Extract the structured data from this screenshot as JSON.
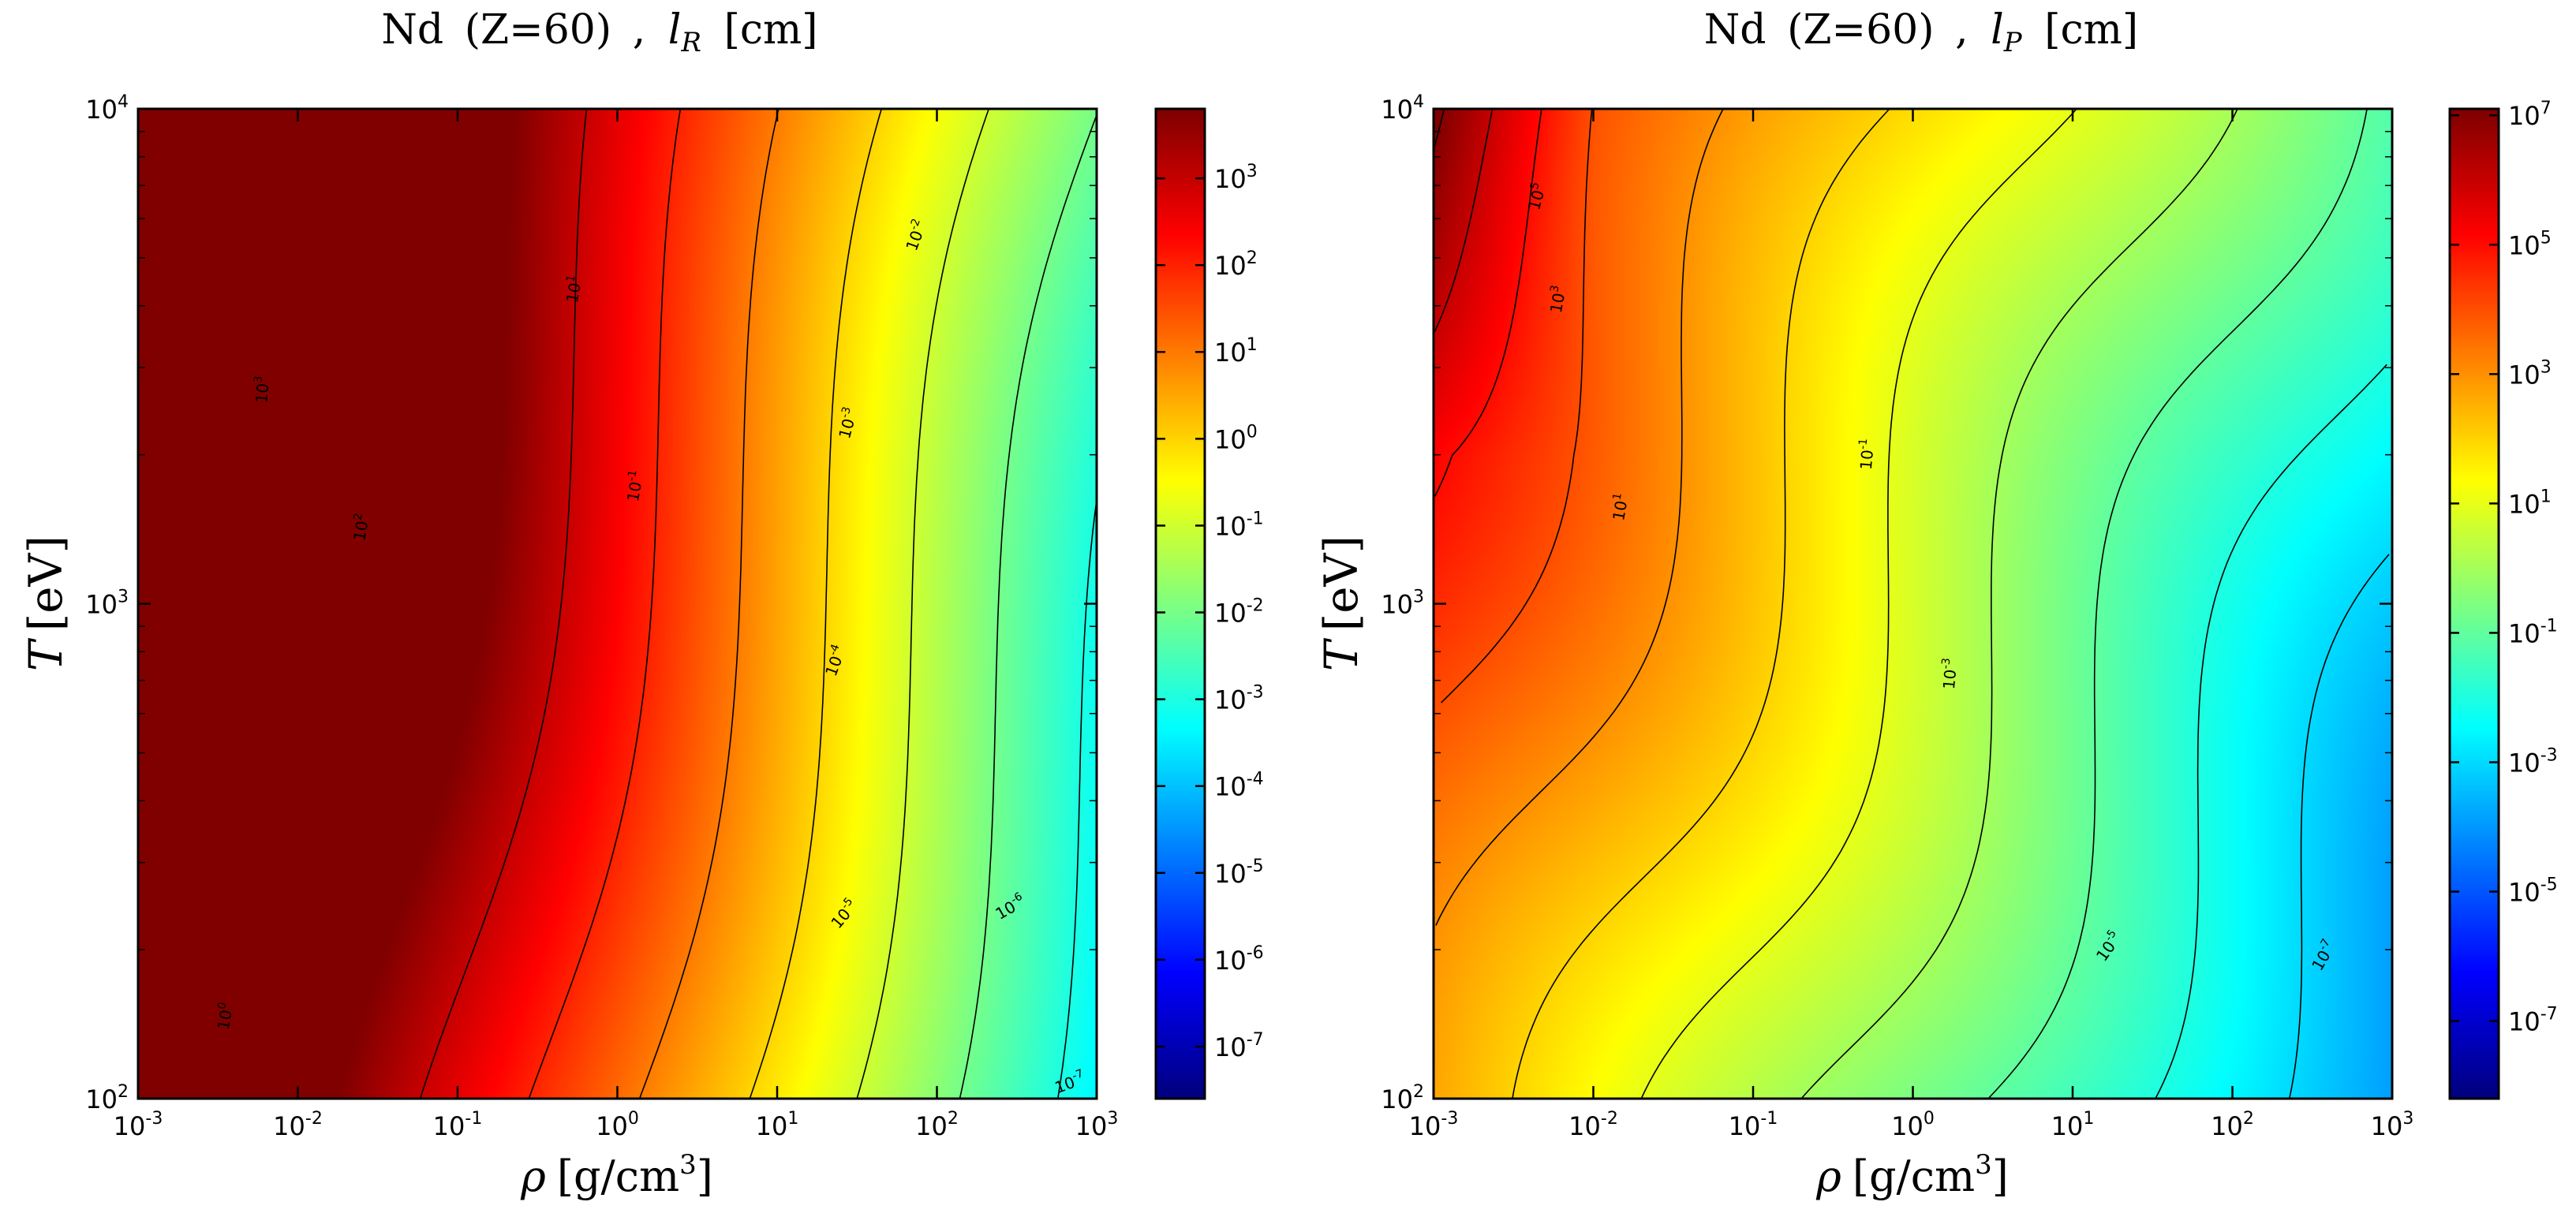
{
  "chart_data": [
    {
      "type": "heatmap",
      "title": "Nd (Z=60) , l_R [cm]",
      "title_parts": {
        "element": "Nd",
        "charge": "(Z=60)",
        "sep": ",",
        "quantity": "l",
        "subscript": "R",
        "unit": "[cm]"
      },
      "xlabel": "ρ [g/cm3]",
      "ylabel": "T [eV]",
      "xscale": "log",
      "yscale": "log",
      "xlim": [
        0.001,
        1000
      ],
      "ylim": [
        100,
        10000
      ],
      "x_ticks": [
        {
          "m": "10",
          "e": "-3"
        },
        {
          "m": "10",
          "e": "-2"
        },
        {
          "m": "10",
          "e": "-1"
        },
        {
          "m": "10",
          "e": "0"
        },
        {
          "m": "10",
          "e": "1"
        },
        {
          "m": "10",
          "e": "2"
        },
        {
          "m": "10",
          "e": "3"
        }
      ],
      "y_ticks": [
        {
          "m": "10",
          "e": "2"
        },
        {
          "m": "10",
          "e": "3"
        },
        {
          "m": "10",
          "e": "4"
        }
      ],
      "colorbar": {
        "scale": "log",
        "range_exp": [
          -7.6,
          3.8
        ],
        "ticks": [
          {
            "m": "10",
            "e": "-7"
          },
          {
            "m": "10",
            "e": "-6"
          },
          {
            "m": "10",
            "e": "-5"
          },
          {
            "m": "10",
            "e": "-4"
          },
          {
            "m": "10",
            "e": "-3"
          },
          {
            "m": "10",
            "e": "-2"
          },
          {
            "m": "10",
            "e": "-1"
          },
          {
            "m": "10",
            "e": "0"
          },
          {
            "m": "10",
            "e": "1"
          },
          {
            "m": "10",
            "e": "2"
          },
          {
            "m": "10",
            "e": "3"
          }
        ]
      },
      "colormap": "jet",
      "contour_labels": [
        {
          "m": "10",
          "e": "3",
          "x": 0.0065,
          "y": 2700,
          "rot": -85
        },
        {
          "m": "10",
          "e": "2",
          "x": 0.027,
          "y": 1420,
          "rot": -80
        },
        {
          "m": "10",
          "e": "1",
          "x": 0.58,
          "y": 4300,
          "rot": -80
        },
        {
          "m": "10",
          "e": "0",
          "x": 0.0038,
          "y": 146,
          "rot": -80
        },
        {
          "m": "10",
          "e": "-1",
          "x": 1.4,
          "y": 1720,
          "rot": -80
        },
        {
          "m": "10",
          "e": "-2",
          "x": 80,
          "y": 5500,
          "rot": -70
        },
        {
          "m": "10",
          "e": "-3",
          "x": 30,
          "y": 2300,
          "rot": -75
        },
        {
          "m": "10",
          "e": "-4",
          "x": 25,
          "y": 760,
          "rot": -70
        },
        {
          "m": "10",
          "e": "-5",
          "x": 28,
          "y": 232,
          "rot": -50
        },
        {
          "m": "10",
          "e": "-6",
          "x": 300,
          "y": 238,
          "rot": -30
        },
        {
          "m": "10",
          "e": "-7",
          "x": 700,
          "y": 105,
          "rot": -20
        }
      ]
    },
    {
      "type": "heatmap",
      "title": "Nd (Z=60) , l_P [cm]",
      "title_parts": {
        "element": "Nd",
        "charge": "(Z=60)",
        "sep": ",",
        "quantity": "l",
        "subscript": "P",
        "unit": "[cm]"
      },
      "xlabel": "ρ [g/cm3]",
      "ylabel": "T [eV]",
      "xscale": "log",
      "yscale": "log",
      "xlim": [
        0.001,
        1000
      ],
      "ylim": [
        100,
        10000
      ],
      "x_ticks": [
        {
          "m": "10",
          "e": "-3"
        },
        {
          "m": "10",
          "e": "-2"
        },
        {
          "m": "10",
          "e": "-1"
        },
        {
          "m": "10",
          "e": "0"
        },
        {
          "m": "10",
          "e": "1"
        },
        {
          "m": "10",
          "e": "2"
        },
        {
          "m": "10",
          "e": "3"
        }
      ],
      "y_ticks": [
        {
          "m": "10",
          "e": "2"
        },
        {
          "m": "10",
          "e": "3"
        },
        {
          "m": "10",
          "e": "4"
        }
      ],
      "colorbar": {
        "scale": "log",
        "range_exp": [
          -8.2,
          7.1
        ],
        "ticks": [
          {
            "m": "10",
            "e": "-7"
          },
          {
            "m": "10",
            "e": "-5"
          },
          {
            "m": "10",
            "e": "-3"
          },
          {
            "m": "10",
            "e": "-1"
          },
          {
            "m": "10",
            "e": "1"
          },
          {
            "m": "10",
            "e": "3"
          },
          {
            "m": "10",
            "e": "5"
          },
          {
            "m": "10",
            "e": "7"
          }
        ]
      },
      "colormap": "jet",
      "contour_labels": [
        {
          "m": "10",
          "e": "5",
          "x": 0.0048,
          "y": 6600,
          "rot": -75
        },
        {
          "m": "10",
          "e": "3",
          "x": 0.0065,
          "y": 4100,
          "rot": -80
        },
        {
          "m": "10",
          "e": "1",
          "x": 0.016,
          "y": 1560,
          "rot": -80
        },
        {
          "m": "10",
          "e": "-1",
          "x": 0.56,
          "y": 2000,
          "rot": -85
        },
        {
          "m": "10",
          "e": "-3",
          "x": 1.85,
          "y": 720,
          "rot": -85
        },
        {
          "m": "10",
          "e": "-5",
          "x": 18,
          "y": 200,
          "rot": -55
        },
        {
          "m": "10",
          "e": "-7",
          "x": 400,
          "y": 192,
          "rot": -60
        }
      ]
    }
  ]
}
